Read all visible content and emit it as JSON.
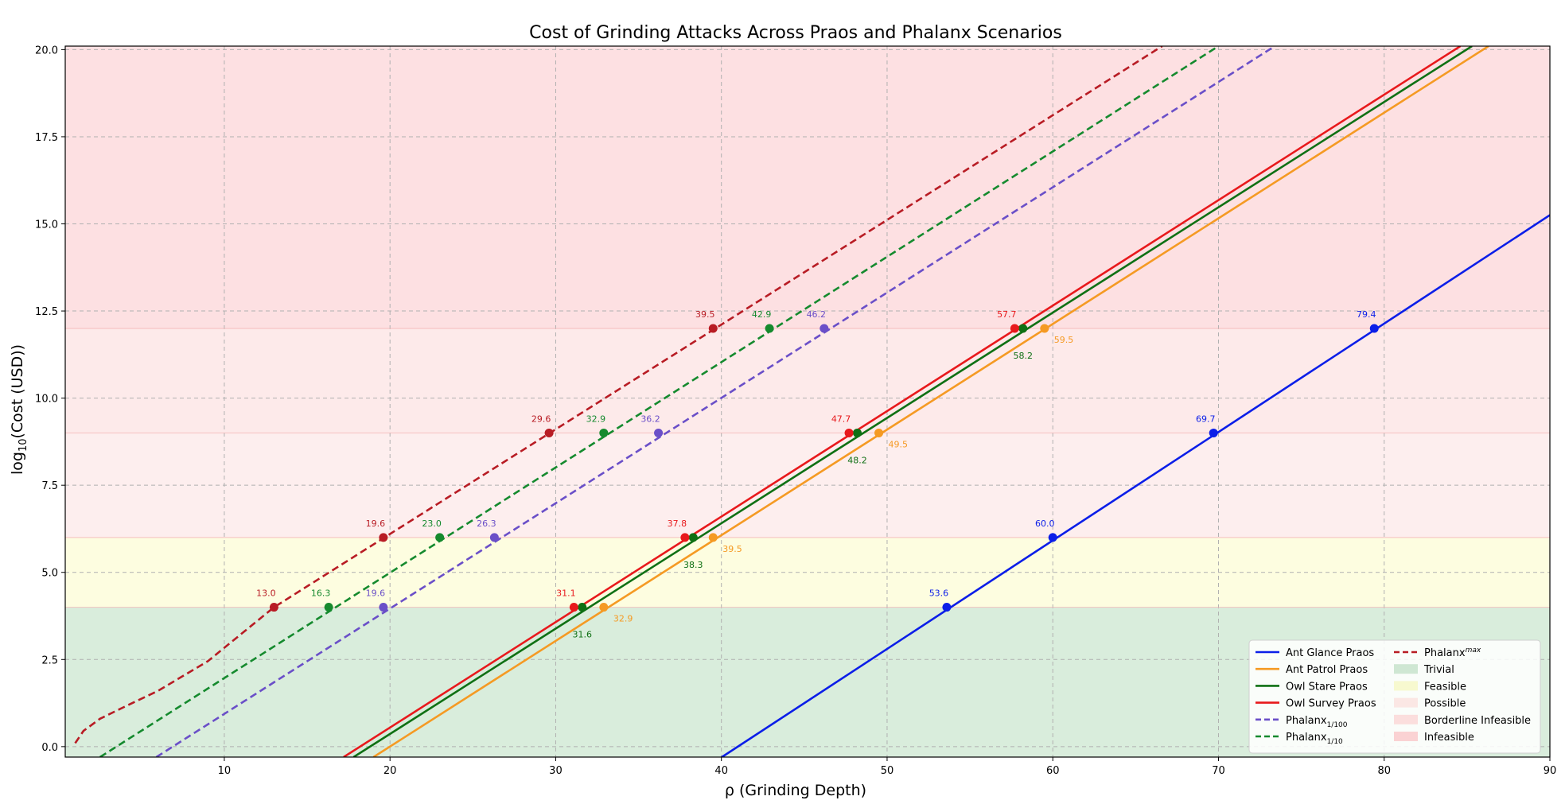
{
  "chart_data": {
    "type": "line",
    "title": "Cost of Grinding Attacks Across Praos and Phalanx Scenarios",
    "xlabel": "ρ (Grinding Depth)",
    "ylabel_prefix": "log",
    "ylabel_sub": "10",
    "ylabel_suffix": "(Cost (USD))",
    "xlim": [
      0.4,
      90
    ],
    "ylim": [
      -0.3,
      20.1
    ],
    "xticks": [
      10,
      20,
      30,
      40,
      50,
      60,
      70,
      80,
      90
    ],
    "yticks": [
      0.0,
      2.5,
      5.0,
      7.5,
      10.0,
      12.5,
      15.0,
      17.5,
      20.0
    ],
    "grid": true,
    "legend_position": "bottom-right",
    "zones": [
      {
        "name": "Trivial",
        "from": -0.3,
        "to": 4,
        "color": "#d9eddc"
      },
      {
        "name": "Feasible",
        "from": 4,
        "to": 6,
        "color": "#fdfde0"
      },
      {
        "name": "Possible",
        "from": 6,
        "to": 9,
        "color": "#fdeeee"
      },
      {
        "name": "Borderline Infeasible",
        "from": 9,
        "to": 12,
        "color": "#fdeaea"
      },
      {
        "name": "Infeasible",
        "from": 12,
        "to": 20.1,
        "color": "#fde0e2"
      }
    ],
    "thresholds": [
      4,
      6,
      9,
      12
    ],
    "series": [
      {
        "name": "Ant Glance Praos",
        "legend_main": "Ant Glance Praos",
        "legend_sub": "",
        "color": "#0b1ee8",
        "dash": false,
        "points": [
          [
            40,
            -0.31
          ],
          [
            90,
            15.25
          ]
        ],
        "markers": [
          {
            "x": 53.6,
            "y": 4,
            "label": "53.6"
          },
          {
            "x": 60.0,
            "y": 6,
            "label": "60.0"
          },
          {
            "x": 69.7,
            "y": 9,
            "label": "69.7"
          },
          {
            "x": 79.4,
            "y": 12,
            "label": "79.4"
          }
        ]
      },
      {
        "name": "Ant Patrol Praos",
        "legend_main": "Ant Patrol Praos",
        "legend_sub": "",
        "color": "#f59a23",
        "dash": false,
        "points": [
          [
            19.0,
            -0.3
          ],
          [
            86.3,
            20.1
          ]
        ],
        "markers": [
          {
            "x": 32.9,
            "y": 4,
            "label": "32.9"
          },
          {
            "x": 39.5,
            "y": 6,
            "label": "39.5"
          },
          {
            "x": 49.5,
            "y": 9,
            "label": "49.5"
          },
          {
            "x": 59.5,
            "y": 12,
            "label": "59.5"
          }
        ]
      },
      {
        "name": "Owl Stare Praos",
        "legend_main": "Owl Stare Praos",
        "legend_sub": "",
        "color": "#0f7014",
        "dash": false,
        "points": [
          [
            17.8,
            -0.3
          ],
          [
            85.3,
            20.1
          ]
        ],
        "markers": [
          {
            "x": 31.6,
            "y": 4,
            "label": "31.6"
          },
          {
            "x": 38.3,
            "y": 6,
            "label": "38.3"
          },
          {
            "x": 48.2,
            "y": 9,
            "label": "48.2"
          },
          {
            "x": 58.2,
            "y": 12,
            "label": "58.2"
          }
        ]
      },
      {
        "name": "Owl Survey Praos",
        "legend_main": "Owl Survey Praos",
        "legend_sub": "",
        "color": "#e8191c",
        "dash": false,
        "points": [
          [
            17.2,
            -0.3
          ],
          [
            84.6,
            20.1
          ]
        ],
        "markers": [
          {
            "x": 31.1,
            "y": 4,
            "label": "31.1"
          },
          {
            "x": 37.8,
            "y": 6,
            "label": "37.8"
          },
          {
            "x": 47.7,
            "y": 9,
            "label": "47.7"
          },
          {
            "x": 57.7,
            "y": 12,
            "label": "57.7"
          }
        ]
      },
      {
        "name": "Phalanx1/100",
        "legend_main": "Phalanx",
        "legend_sub": "1/100",
        "color": "#6a4fc8",
        "dash": true,
        "points": [
          [
            5.9,
            -0.3
          ],
          [
            73.4,
            20.1
          ]
        ],
        "markers": [
          {
            "x": 19.6,
            "y": 4,
            "label": "19.6"
          },
          {
            "x": 26.3,
            "y": 6,
            "label": "26.3"
          },
          {
            "x": 36.2,
            "y": 9,
            "label": "36.2"
          },
          {
            "x": 46.2,
            "y": 12,
            "label": "46.2"
          }
        ]
      },
      {
        "name": "Phalanx1/10",
        "legend_main": "Phalanx",
        "legend_sub": "1/10",
        "color": "#158a2e",
        "dash": true,
        "points": [
          [
            2.5,
            -0.3
          ],
          [
            70.0,
            20.1
          ]
        ],
        "markers": [
          {
            "x": 16.3,
            "y": 4,
            "label": "16.3"
          },
          {
            "x": 23.0,
            "y": 6,
            "label": "23.0"
          },
          {
            "x": 32.9,
            "y": 9,
            "label": "32.9"
          },
          {
            "x": 42.9,
            "y": 12,
            "label": "42.9"
          }
        ]
      },
      {
        "name": "Phalanxmax",
        "legend_main": "Phalanx",
        "legend_sub": "max",
        "color": "#b81c24",
        "dash": true,
        "points": [
          [
            1.0,
            0.1
          ],
          [
            1.5,
            0.45
          ],
          [
            2.5,
            0.8
          ],
          [
            4,
            1.15
          ],
          [
            6,
            1.6
          ],
          [
            9,
            2.45
          ],
          [
            13.0,
            4.0
          ],
          [
            66.6,
            20.1
          ]
        ],
        "markers": [
          {
            "x": 13.0,
            "y": 4,
            "label": "13.0"
          },
          {
            "x": 19.6,
            "y": 6,
            "label": "19.6"
          },
          {
            "x": 29.6,
            "y": 9,
            "label": "29.6"
          },
          {
            "x": 39.5,
            "y": 12,
            "label": "39.5"
          }
        ]
      }
    ]
  }
}
